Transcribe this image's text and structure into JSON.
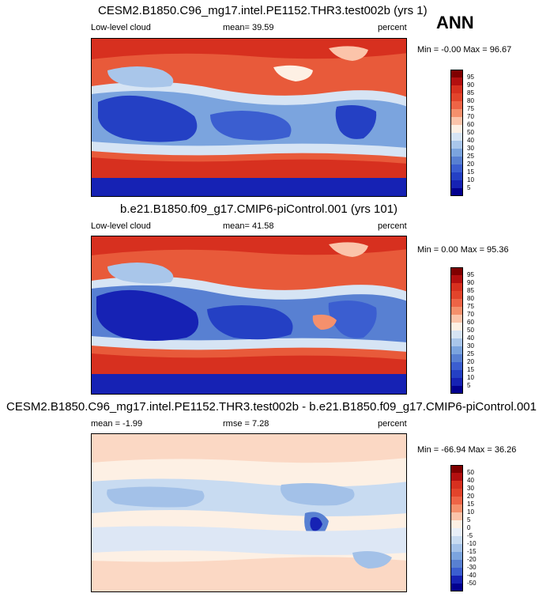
{
  "season": "ANN",
  "chart_data": [
    {
      "type": "heatmap",
      "title": "CESM2.B1850.C96_mg17.intel.PE1152.THR3.test002b (yrs 1)",
      "left_label": "Low-level cloud",
      "center_label": "mean=  39.59",
      "right_label": "percent",
      "range_label": "Min = -0.00 Max =  96.67",
      "stats": {
        "mean": 39.59,
        "min": -0.0,
        "max": 96.67
      },
      "colorbar": {
        "labels": [
          "95",
          "90",
          "85",
          "80",
          "75",
          "70",
          "60",
          "50",
          "40",
          "30",
          "25",
          "20",
          "15",
          "10",
          "5"
        ],
        "colors": [
          "#7f0000",
          "#b30f0f",
          "#d7301f",
          "#e2442b",
          "#ee6446",
          "#f5906c",
          "#fbc4aa",
          "#fdf0e4",
          "#d6e4f4",
          "#a9c6ea",
          "#7ba4de",
          "#5880d2",
          "#3b5ed0",
          "#2440c4",
          "#1622b4",
          "#03008f"
        ]
      }
    },
    {
      "type": "heatmap",
      "title": "b.e21.B1850.f09_g17.CMIP6-piControl.001 (yrs 101)",
      "left_label": "Low-level cloud",
      "center_label": "mean=  41.58",
      "right_label": "percent",
      "range_label": "Min =  0.00 Max =  95.36",
      "stats": {
        "mean": 41.58,
        "min": 0.0,
        "max": 95.36
      },
      "colorbar": {
        "labels": [
          "95",
          "90",
          "85",
          "80",
          "75",
          "70",
          "60",
          "50",
          "40",
          "30",
          "25",
          "20",
          "15",
          "10",
          "5"
        ],
        "colors": [
          "#7f0000",
          "#b30f0f",
          "#d7301f",
          "#e2442b",
          "#ee6446",
          "#f5906c",
          "#fbc4aa",
          "#fdf0e4",
          "#d6e4f4",
          "#a9c6ea",
          "#7ba4de",
          "#5880d2",
          "#3b5ed0",
          "#2440c4",
          "#1622b4",
          "#03008f"
        ]
      }
    },
    {
      "type": "heatmap",
      "title": "CESM2.B1850.C96_mg17.intel.PE1152.THR3.test002b - b.e21.B1850.f09_g17.CMIP6-piControl.001",
      "left_label": "mean =  -1.99",
      "center_label": "rmse =  7.28",
      "right_label": "percent",
      "range_label": "Min = -66.94 Max =  36.26",
      "stats": {
        "mean": -1.99,
        "rmse": 7.28,
        "min": -66.94,
        "max": 36.26
      },
      "colorbar": {
        "labels": [
          "50",
          "40",
          "30",
          "20",
          "15",
          "10",
          "5",
          "0",
          "-5",
          "-10",
          "-15",
          "-20",
          "-30",
          "-40",
          "-50"
        ],
        "colors": [
          "#7f0000",
          "#b30f0f",
          "#d7301f",
          "#e2442b",
          "#ee6446",
          "#f5906c",
          "#fbc4aa",
          "#fdf0e4",
          "#e8eff9",
          "#c8dbf1",
          "#a3c1e8",
          "#7ba4de",
          "#5880d2",
          "#3b5ed0",
          "#1622b4",
          "#03008f"
        ]
      }
    }
  ]
}
